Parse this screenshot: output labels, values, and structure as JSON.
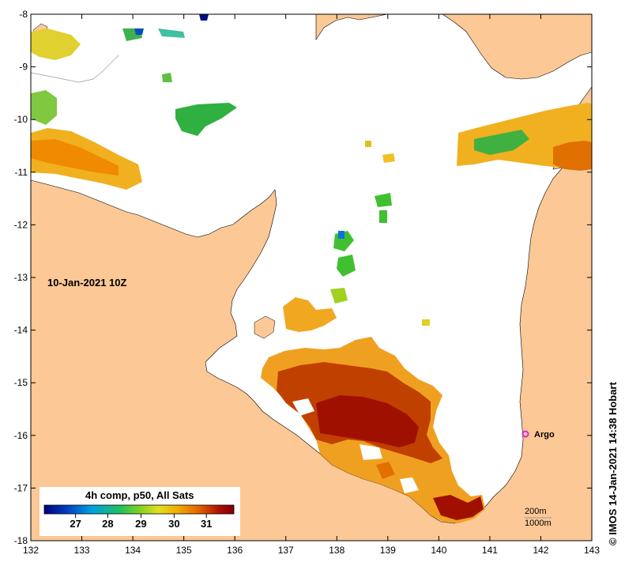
{
  "map": {
    "date_label": "10-Jan-2021 10Z",
    "credit": "© IMOS 14-Jan-2021 14:38 Hobart",
    "x_ticks": [
      "132",
      "133",
      "134",
      "135",
      "136",
      "137",
      "138",
      "139",
      "140",
      "141",
      "142",
      "143"
    ],
    "y_ticks": [
      "-8",
      "-9",
      "-10",
      "-11",
      "-12",
      "-13",
      "-14",
      "-15",
      "-16",
      "-17",
      "-18"
    ],
    "colorbar": {
      "title": "4h comp, p50, All Sats",
      "ticks": [
        "27",
        "28",
        "29",
        "30",
        "31"
      ]
    },
    "argo_label": "Argo",
    "depth_contours": [
      "200m",
      "1000m"
    ],
    "colors": {
      "land": "#fbc896",
      "sea": "#ffffff",
      "argo": "#e020e0",
      "palette": [
        "#00007f",
        "#0058c0",
        "#00b0e0",
        "#20c060",
        "#80d030",
        "#e0e020",
        "#f0a000",
        "#e06000",
        "#c02000",
        "#900000"
      ]
    }
  }
}
